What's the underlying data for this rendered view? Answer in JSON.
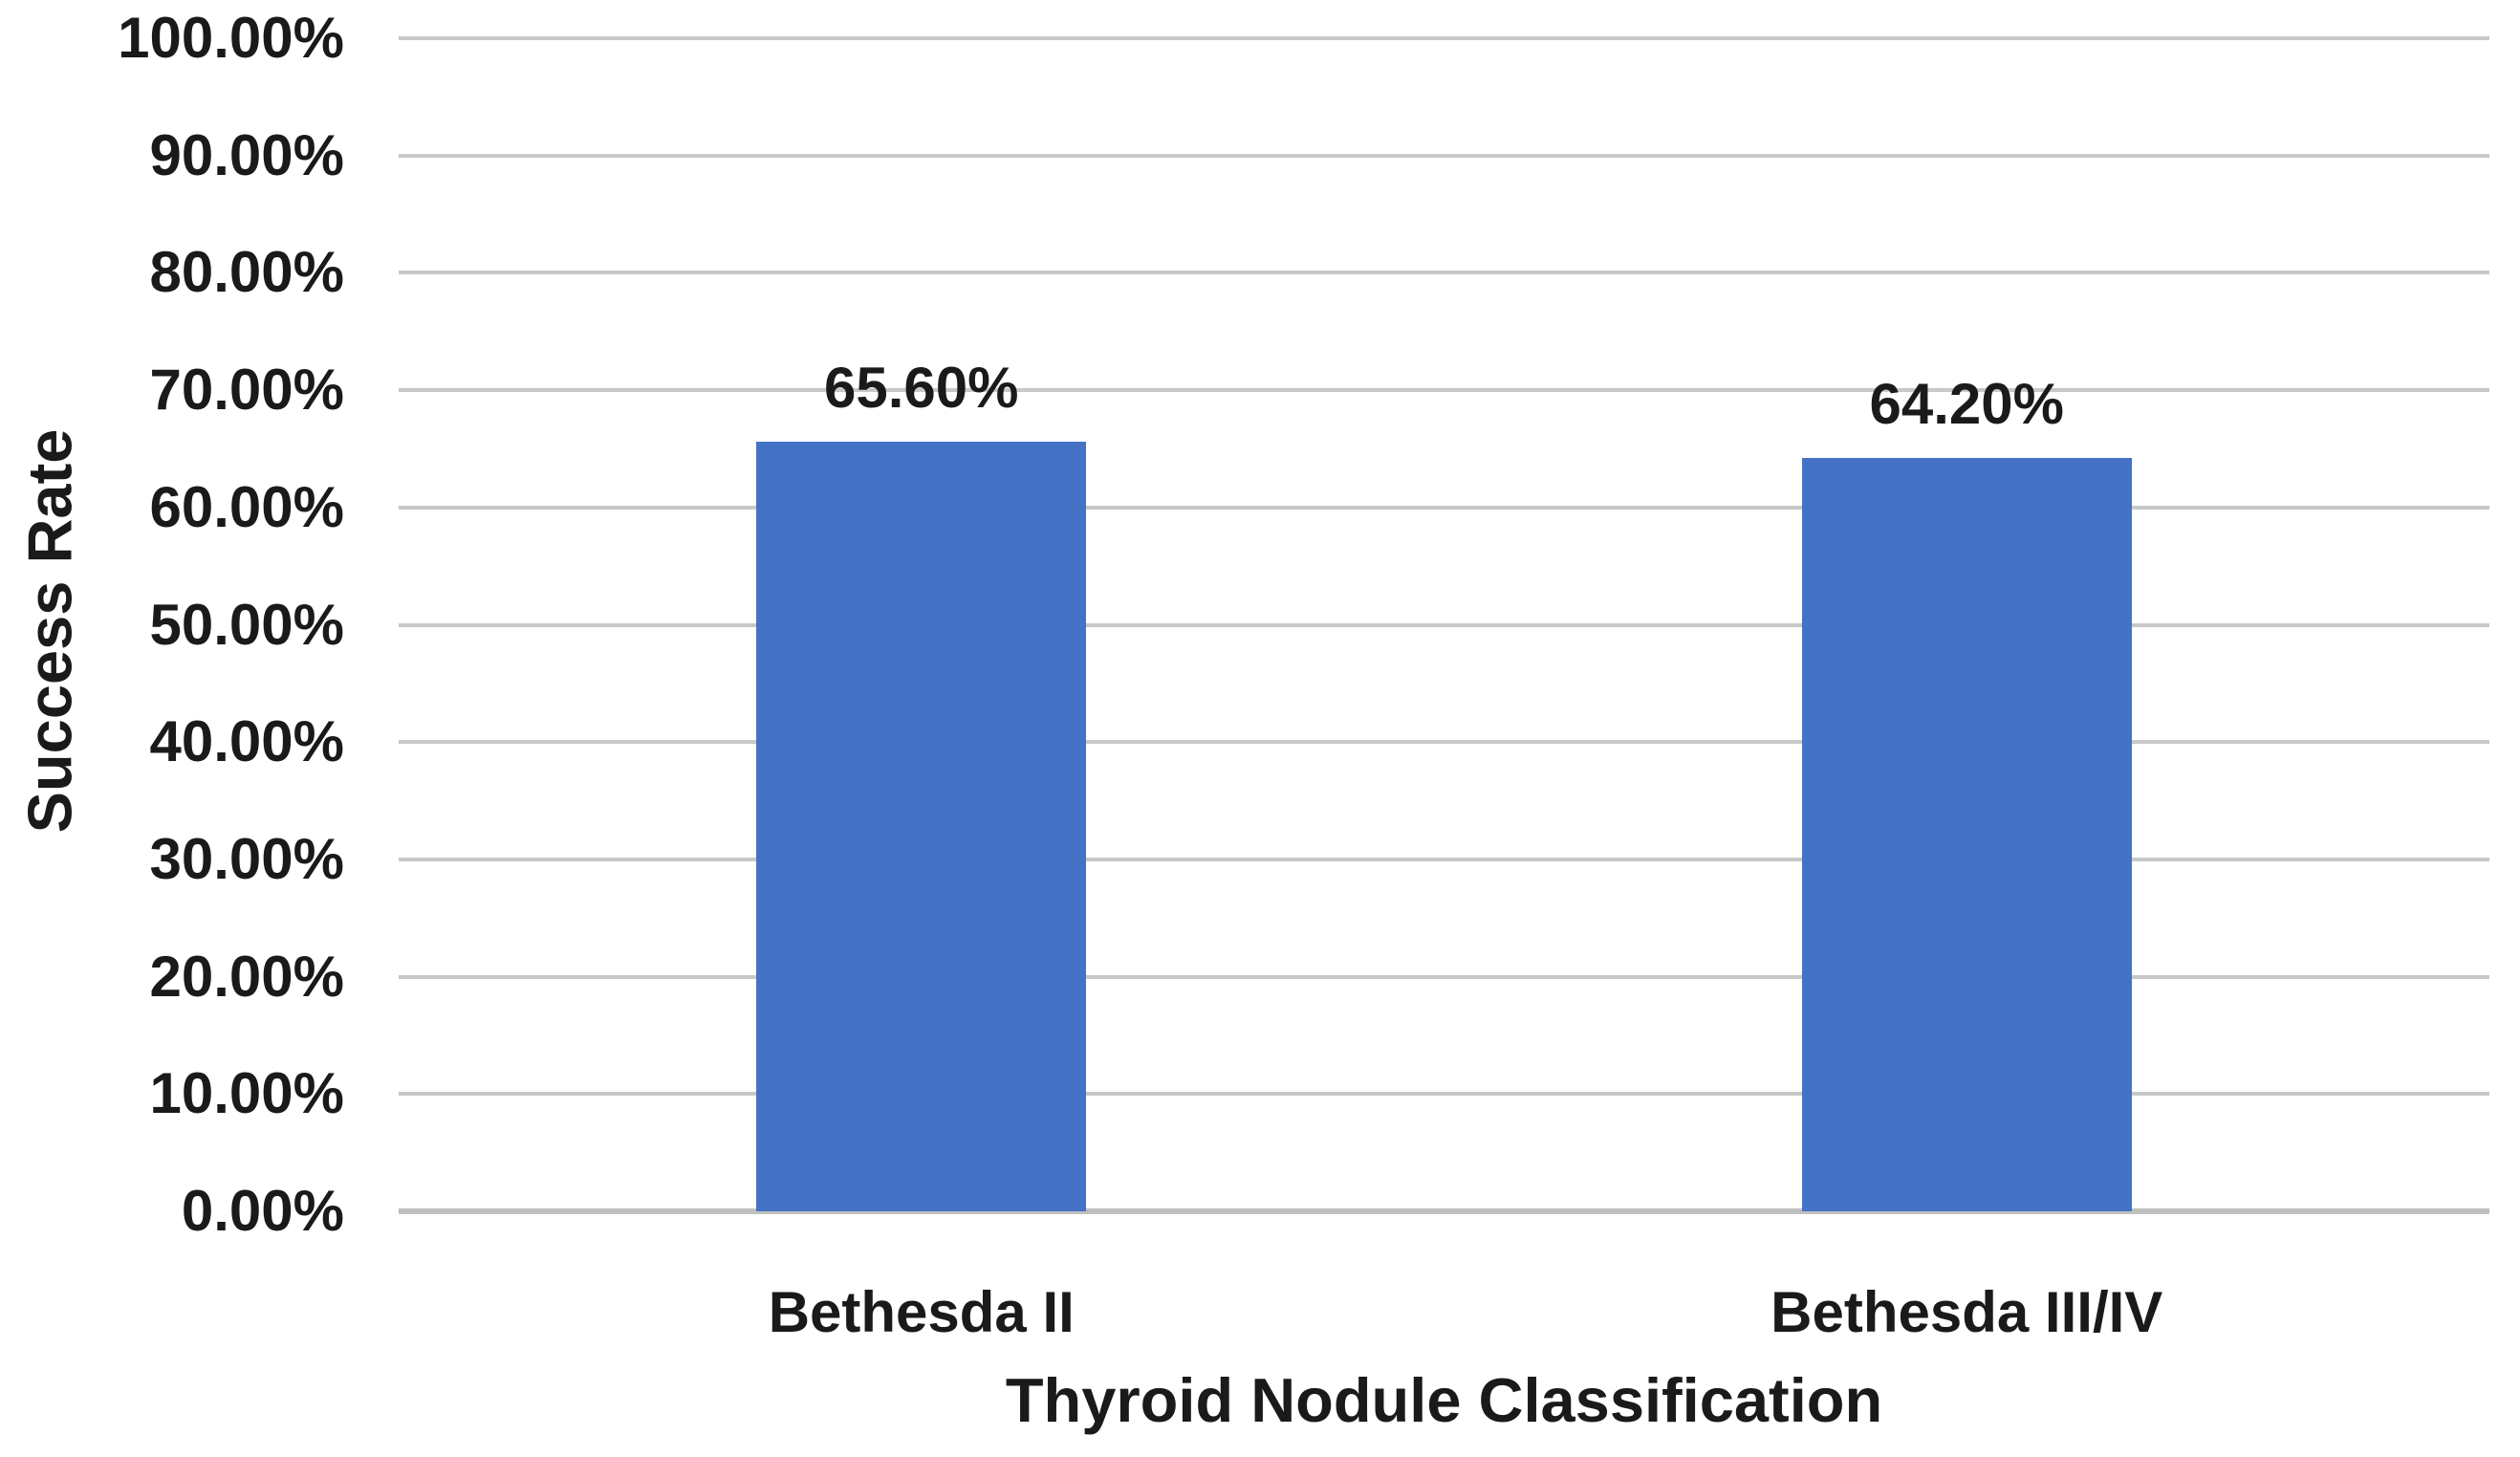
{
  "chart_data": {
    "type": "bar",
    "title": "",
    "categories": [
      "Bethesda II",
      "Bethesda III/IV"
    ],
    "values": [
      65.6,
      64.2
    ],
    "data_labels": [
      "65.60%",
      "64.20%"
    ],
    "xlabel": "Thyroid Nodule Classification",
    "ylabel": "Success Rate",
    "ylim": [
      0,
      100
    ],
    "yticks": [
      {
        "value": 0,
        "label": "0.00%"
      },
      {
        "value": 10,
        "label": "10.00%"
      },
      {
        "value": 20,
        "label": "20.00%"
      },
      {
        "value": 30,
        "label": "30.00%"
      },
      {
        "value": 40,
        "label": "40.00%"
      },
      {
        "value": 50,
        "label": "50.00%"
      },
      {
        "value": 60,
        "label": "60.00%"
      },
      {
        "value": 70,
        "label": "70.00%"
      },
      {
        "value": 80,
        "label": "80.00%"
      },
      {
        "value": 90,
        "label": "90.00%"
      },
      {
        "value": 100,
        "label": "100.00%"
      }
    ],
    "grid": true,
    "legend": false,
    "colors": {
      "bar": "#4472C5",
      "gridline": "#C8C8C8",
      "axis_line": "#BFBFBF",
      "text": "#1A1A1A",
      "background": "#FFFFFF"
    }
  }
}
